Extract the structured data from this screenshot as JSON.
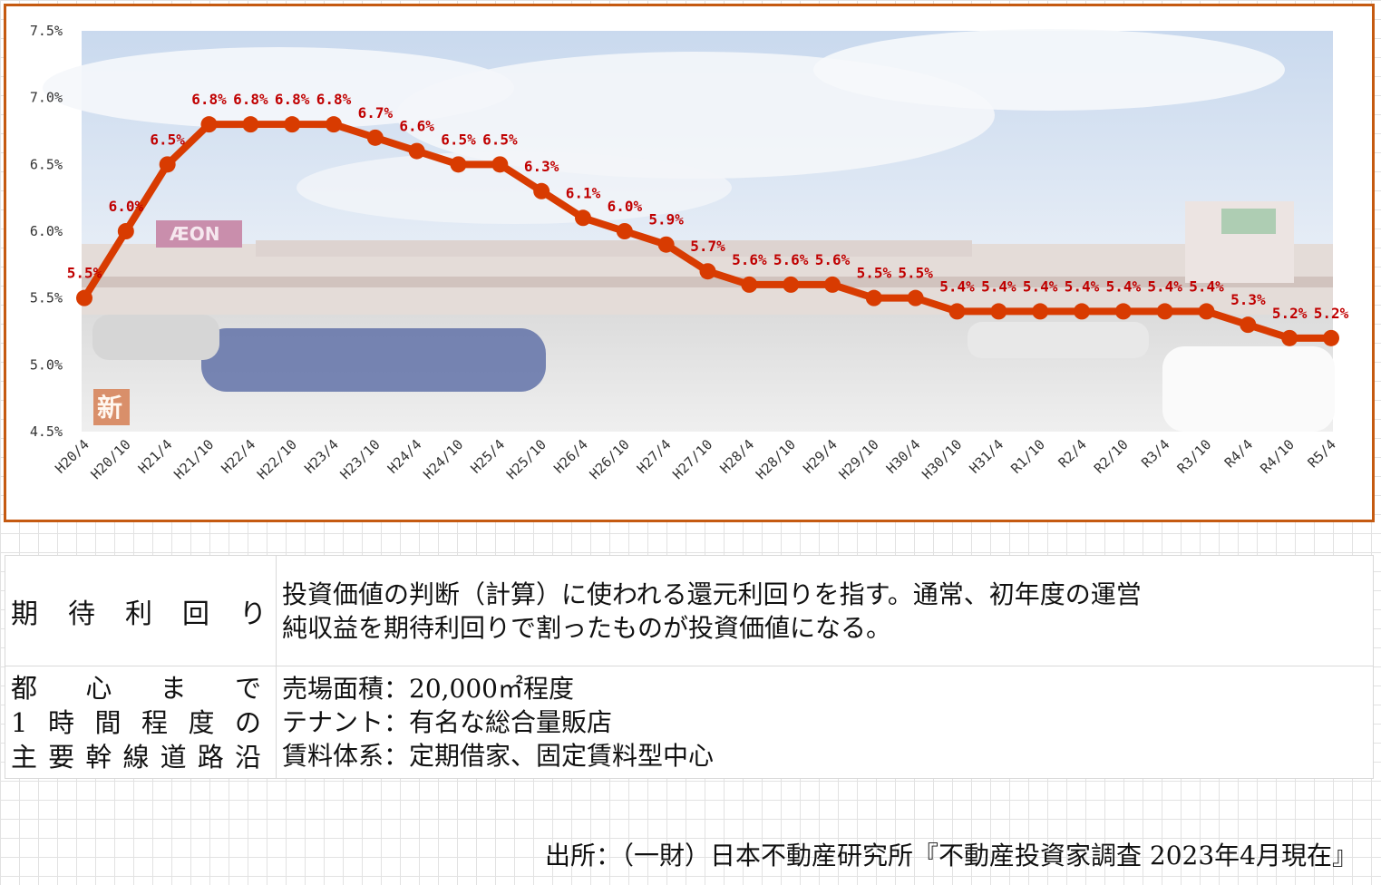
{
  "chart_data": {
    "type": "line",
    "categories": [
      "H20/4",
      "H20/10",
      "H21/4",
      "H21/10",
      "H22/4",
      "H22/10",
      "H23/4",
      "H23/10",
      "H24/4",
      "H24/10",
      "H25/4",
      "H25/10",
      "H26/4",
      "H26/10",
      "H27/4",
      "H27/10",
      "H28/4",
      "H28/10",
      "H29/4",
      "H29/10",
      "H30/4",
      "H30/10",
      "H31/4",
      "R1/10",
      "R2/4",
      "R2/10",
      "R3/4",
      "R3/10",
      "R4/4",
      "R4/10",
      "R5/4"
    ],
    "values": [
      5.5,
      6.0,
      6.5,
      6.8,
      6.8,
      6.8,
      6.8,
      6.7,
      6.6,
      6.5,
      6.5,
      6.3,
      6.1,
      6.0,
      5.9,
      5.7,
      5.6,
      5.6,
      5.6,
      5.5,
      5.5,
      5.4,
      5.4,
      5.4,
      5.4,
      5.4,
      5.4,
      5.4,
      5.3,
      5.2,
      5.2
    ],
    "data_labels": [
      "5.5%",
      "6.0%",
      "6.5%",
      "6.8%",
      "6.8%",
      "6.8%",
      "6.8%",
      "6.7%",
      "6.6%",
      "6.5%",
      "6.5%",
      "6.3%",
      "6.1%",
      "6.0%",
      "5.9%",
      "5.7%",
      "5.6%",
      "5.6%",
      "5.6%",
      "5.5%",
      "5.5%",
      "5.4%",
      "5.4%",
      "5.4%",
      "5.4%",
      "5.4%",
      "5.4%",
      "5.4%",
      "5.3%",
      "5.2%",
      "5.2%"
    ],
    "y_ticks": [
      "7.5%",
      "7.0%",
      "6.5%",
      "6.0%",
      "5.5%",
      "5.0%",
      "4.5%"
    ],
    "ylim": [
      4.5,
      7.5
    ],
    "line_color": "#d83b01",
    "label_color": "#c00000",
    "grid": false
  },
  "photo": {
    "sign_left": "ÆON",
    "badge": "新"
  },
  "table": {
    "row1": {
      "label_chars": [
        "期",
        "待",
        "利",
        "回",
        "り"
      ],
      "desc_lines": [
        "投資価値の判断（計算）に使われる還元利回りを指す。通常、初年度の運営",
        "純収益を期待利回りで割ったものが投資価値になる。"
      ]
    },
    "row2": {
      "label_lines": [
        [
          "都",
          "心",
          "ま",
          "で"
        ],
        [
          "1",
          "時",
          "間",
          "程",
          "度",
          "の"
        ],
        [
          "主",
          "要",
          "幹",
          "線",
          "道",
          "路",
          "沿"
        ]
      ],
      "desc_lines": [
        "売場面積：20,000㎡程度",
        "テナント：有名な総合量販店",
        "賃料体系：定期借家、固定賃料型中心"
      ]
    }
  },
  "source": "出所：（一財）日本不動産研究所『不動産投資家調査 2023年4月現在』"
}
